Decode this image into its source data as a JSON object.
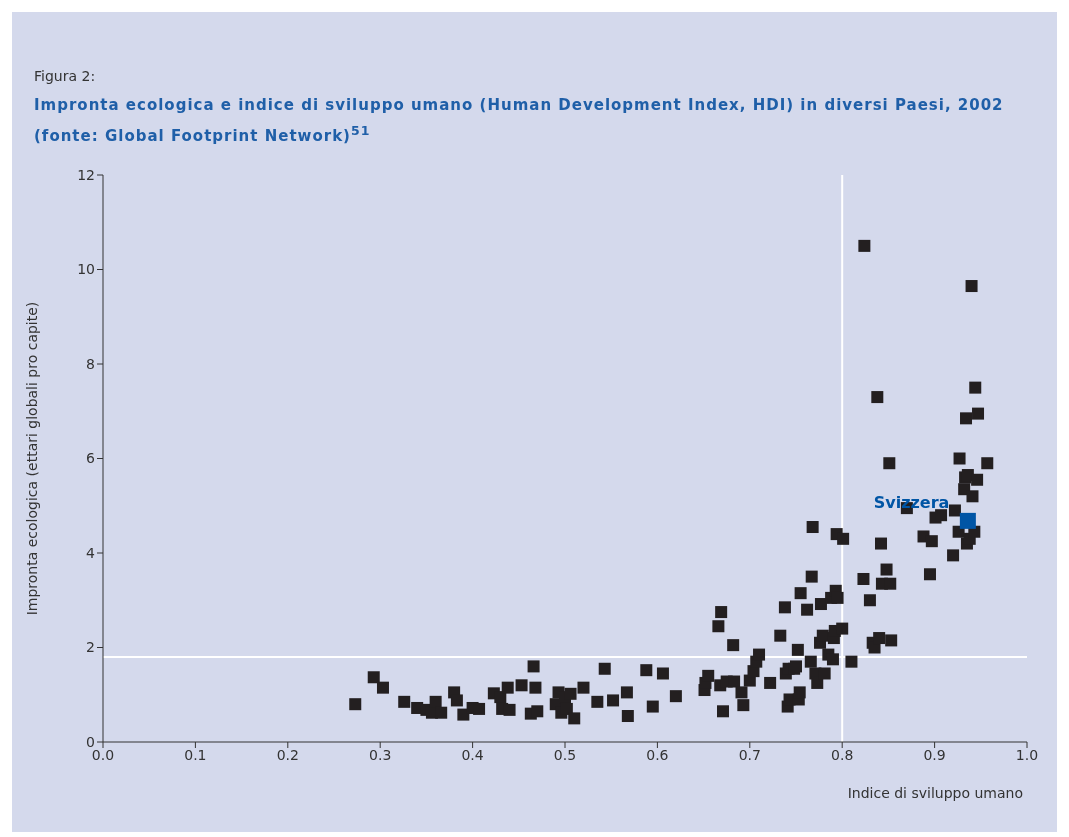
{
  "chart_data": {
    "type": "scatter",
    "title": "Impronta ecologica e indice di sviluppo umano (Human Development Index, HDI) in diversi Paesi, 2002 (fonte: Global Footprint Network)$^{51}$",
    "annotations": [
      "Figura 2:"
    ],
    "xlabel": "Indice di sviluppo umano",
    "ylabel": "Impronta ecologica (ettari globali pro capite)",
    "xlim": [
      0,
      1
    ],
    "xticks": [
      {
        "value": 0,
        "label": "0.0"
      },
      {
        "value": 0.1,
        "label": "0.1"
      },
      {
        "value": 0.2,
        "label": "0.2"
      },
      {
        "value": 0.3,
        "label": "0.3"
      },
      {
        "value": 0.4,
        "label": "0.4"
      },
      {
        "value": 0.5,
        "label": "0.5"
      },
      {
        "value": 0.6,
        "label": "0.6"
      },
      {
        "value": 0.7,
        "label": "0.7"
      },
      {
        "value": 0.8,
        "label": "0.8"
      },
      {
        "value": 0.9,
        "label": "0.9"
      },
      {
        "value": 1,
        "label": "1.0"
      }
    ],
    "ylim": [
      0,
      12
    ],
    "yticks": [
      0,
      2,
      4,
      6,
      8,
      10,
      12
    ],
    "grid": false,
    "marker": "square",
    "ref_lines": [
      {
        "axis": "x",
        "value": 0.8,
        "color": "#ffffff"
      },
      {
        "axis": "y",
        "value": 1.8,
        "color": "#ffffff"
      }
    ],
    "series": [
      {
        "color": "#231f20",
        "x": [
          0.273,
          0.293,
          0.303,
          0.326,
          0.34,
          0.35,
          0.356,
          0.36,
          0.366,
          0.38,
          0.383,
          0.39,
          0.4,
          0.407,
          0.423,
          0.43,
          0.432,
          0.438,
          0.44,
          0.453,
          0.463,
          0.466,
          0.468,
          0.47,
          0.49,
          0.493,
          0.496,
          0.5,
          0.502,
          0.506,
          0.51,
          0.52,
          0.535,
          0.543,
          0.552,
          0.567,
          0.568,
          0.588,
          0.595,
          0.606,
          0.62,
          0.651,
          0.652,
          0.655,
          0.666,
          0.668,
          0.669,
          0.671,
          0.675,
          0.682,
          0.683,
          0.691,
          0.693,
          0.7,
          0.704,
          0.707,
          0.71,
          0.722,
          0.733,
          0.738,
          0.739,
          0.741,
          0.742,
          0.743,
          0.748,
          0.75,
          0.752,
          0.753,
          0.754,
          0.755,
          0.762,
          0.766,
          0.767,
          0.768,
          0.771,
          0.773,
          0.776,
          0.777,
          0.779,
          0.781,
          0.785,
          0.788,
          0.79,
          0.791,
          0.792,
          0.793,
          0.794,
          0.795,
          0.8,
          0.801,
          0.81,
          0.823,
          0.824,
          0.83,
          0.833,
          0.835,
          0.838,
          0.84,
          0.842,
          0.843,
          0.848,
          0.851,
          0.852,
          0.853,
          0.87,
          0.888,
          0.895,
          0.897,
          0.901,
          0.907,
          0.92,
          0.922,
          0.926,
          0.927,
          0.932,
          0.933,
          0.934,
          0.935,
          0.936,
          0.938,
          0.94,
          0.941,
          0.943,
          0.944,
          0.946,
          0.947,
          0.957
        ],
        "values": [
          0.8,
          1.37,
          1.15,
          0.85,
          0.72,
          0.68,
          0.62,
          0.85,
          0.62,
          1.05,
          0.88,
          0.58,
          0.72,
          0.7,
          1.03,
          0.95,
          0.7,
          1.15,
          0.68,
          1.2,
          0.6,
          1.6,
          1.15,
          0.65,
          0.8,
          1.05,
          0.62,
          0.95,
          0.7,
          1.02,
          0.5,
          1.15,
          0.85,
          1.55,
          0.88,
          1.05,
          0.55,
          1.52,
          0.75,
          1.45,
          0.97,
          1.1,
          1.25,
          1.4,
          2.45,
          1.2,
          2.75,
          0.65,
          1.28,
          2.05,
          1.28,
          1.05,
          0.78,
          1.3,
          1.5,
          1.7,
          1.85,
          1.25,
          2.25,
          2.85,
          1.45,
          0.75,
          1.55,
          0.9,
          1.55,
          1.6,
          1.95,
          0.9,
          1.05,
          3.15,
          2.8,
          1.7,
          3.5,
          4.55,
          1.45,
          1.25,
          2.1,
          2.92,
          2.25,
          1.45,
          1.85,
          3.05,
          1.75,
          2.2,
          2.35,
          3.2,
          4.4,
          3.05,
          2.4,
          4.3,
          1.7,
          3.45,
          10.5,
          3.0,
          2.1,
          2.0,
          7.3,
          2.2,
          4.2,
          3.35,
          3.65,
          5.9,
          3.35,
          2.15,
          4.95,
          4.35,
          3.55,
          4.25,
          4.75,
          4.8,
          3.95,
          4.9,
          4.45,
          6.0,
          5.35,
          5.6,
          6.85,
          4.2,
          5.65,
          4.3,
          9.65,
          5.2,
          4.45,
          7.5,
          5.55,
          6.95,
          5.9
        ]
      },
      {
        "name": "Svizzera",
        "color": "#0055a5",
        "x": [
          0.936
        ],
        "values": [
          4.68
        ]
      }
    ]
  }
}
